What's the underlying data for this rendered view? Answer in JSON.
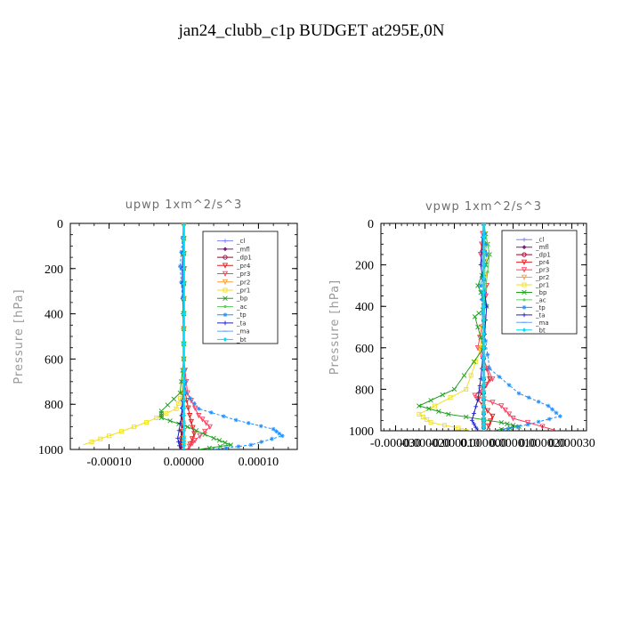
{
  "page": {
    "title": "jan24_clubb_c1p  BUDGET at295E,0N"
  },
  "legend": [
    {
      "name": "_cl",
      "color": "#8080ff",
      "marker": "plus"
    },
    {
      "name": "_mfl",
      "color": "#7a1a7a",
      "marker": "diamond"
    },
    {
      "name": "_dp1",
      "color": "#a00030",
      "marker": "circle"
    },
    {
      "name": "_pr4",
      "color": "#e02020",
      "marker": "tri"
    },
    {
      "name": "_pr3",
      "color": "#ff4060",
      "marker": "tri"
    },
    {
      "name": "_pr2",
      "color": "#ffa040",
      "marker": "tri"
    },
    {
      "name": "_pr1",
      "color": "#f0e020",
      "marker": "square"
    },
    {
      "name": "_bp",
      "color": "#20a020",
      "marker": "x"
    },
    {
      "name": "_ac",
      "color": "#60d060",
      "marker": "dot"
    },
    {
      "name": "_tp",
      "color": "#1e90ff",
      "marker": "star"
    },
    {
      "name": "_ta",
      "color": "#2020c0",
      "marker": "plus"
    },
    {
      "name": "_ma",
      "color": "#60a0ff",
      "marker": "dash"
    },
    {
      "name": "_bt",
      "color": "#00e0ff",
      "marker": "diamond"
    }
  ],
  "chart_data": [
    {
      "type": "line",
      "title": "upwp   1xm^2/s^3",
      "xlabel": "",
      "ylabel": "Pressure [hPa]",
      "xlim": [
        -0.000152,
        0.000152
      ],
      "ylim": [
        0,
        1000
      ],
      "y_inverted": true,
      "xticks": [
        -0.0001,
        0,
        0.0001
      ],
      "xtick_labels": [
        "-0.00010",
        "0.00000",
        "0.00010"
      ],
      "yticks": [
        0,
        200,
        400,
        600,
        800,
        1000
      ],
      "ytick_labels": [
        "0",
        "200",
        "400",
        "600",
        "800",
        "1000"
      ],
      "legend_position": "top-right",
      "series": [
        {
          "name": "_cl",
          "x": [
            3e-07,
            3e-07,
            3e-07,
            3e-07,
            3e-07,
            3e-07,
            3e-07,
            3e-07
          ],
          "y": [
            0,
            200,
            400,
            600,
            750,
            850,
            950,
            1000
          ]
        },
        {
          "name": "_mfl",
          "x": [
            0,
            0,
            0,
            0,
            0,
            0,
            0,
            0
          ],
          "y": [
            0,
            200,
            400,
            600,
            750,
            850,
            950,
            1000
          ]
        },
        {
          "name": "_dp1",
          "x": [
            0,
            0,
            0,
            0,
            0,
            -1.5e-06,
            -3e-06,
            -4e-06
          ],
          "y": [
            0,
            200,
            400,
            600,
            750,
            850,
            950,
            1000
          ]
        },
        {
          "name": "_pr4",
          "x": [
            0,
            0,
            0,
            0,
            2e-06,
            8e-06,
            1.4e-05,
            6e-06
          ],
          "y": [
            0,
            200,
            400,
            600,
            750,
            850,
            930,
            1000
          ]
        },
        {
          "name": "_pr3",
          "x": [
            0,
            0,
            0,
            0,
            5e-06,
            2e-05,
            3.5e-05,
            1.5e-05,
            4e-06
          ],
          "y": [
            0,
            200,
            400,
            600,
            750,
            850,
            900,
            960,
            1000
          ]
        },
        {
          "name": "_pr2",
          "x": [
            0,
            1e-06,
            0,
            0,
            0,
            -1e-06,
            0,
            0
          ],
          "y": [
            0,
            200,
            400,
            600,
            750,
            850,
            950,
            1000
          ]
        },
        {
          "name": "_pr1",
          "x": [
            0,
            -1e-06,
            0,
            0,
            -2e-06,
            -1e-05,
            -5e-05,
            -0.0001,
            -0.000135
          ],
          "y": [
            0,
            200,
            400,
            600,
            750,
            820,
            880,
            940,
            980
          ]
        },
        {
          "name": "_bp",
          "x": [
            0,
            0,
            0,
            0,
            -5e-06,
            -3e-05,
            -3e-05,
            5e-06,
            4e-05,
            6.3e-05,
            2e-05
          ],
          "y": [
            0,
            200,
            400,
            600,
            750,
            830,
            860,
            900,
            950,
            980,
            1000
          ]
        },
        {
          "name": "_ac",
          "x": [
            0,
            0,
            0,
            0,
            0,
            0,
            0,
            0
          ],
          "y": [
            0,
            200,
            400,
            600,
            750,
            850,
            950,
            1000
          ]
        },
        {
          "name": "_tp",
          "x": [
            0,
            -5e-06,
            0,
            0,
            3e-06,
            2e-05,
            7e-05,
            0.00012,
            0.000132,
            9e-05,
            4e-05
          ],
          "y": [
            0,
            190,
            400,
            600,
            750,
            820,
            870,
            910,
            940,
            980,
            1000
          ]
        },
        {
          "name": "_ta",
          "x": [
            0,
            -2e-06,
            -1e-06,
            0,
            -1e-06,
            -3e-06,
            -8e-06,
            -5e-06
          ],
          "y": [
            0,
            200,
            400,
            600,
            750,
            850,
            950,
            1000
          ]
        },
        {
          "name": "_ma",
          "x": [
            0,
            0,
            0,
            0,
            0,
            0,
            0,
            0
          ],
          "y": [
            0,
            200,
            400,
            600,
            750,
            850,
            950,
            1000
          ]
        },
        {
          "name": "_bt",
          "x": [
            0,
            0,
            0,
            0,
            0,
            0,
            0,
            0
          ],
          "y": [
            0,
            200,
            400,
            600,
            750,
            850,
            950,
            1000
          ]
        }
      ]
    },
    {
      "type": "line",
      "title": "vpwp   1xm^2/s^3",
      "xlabel": "",
      "ylabel": "Pressure [hPa]",
      "xlim": [
        -3.5e-05,
        3.5e-05
      ],
      "ylim": [
        0,
        1000
      ],
      "y_inverted": true,
      "xticks": [
        -3e-05,
        -2e-05,
        -1e-05,
        0,
        1e-05,
        2e-05,
        3e-05
      ],
      "xtick_labels": [
        "-0.000030",
        "-0.000020",
        "-0.000010",
        "0.000000",
        "0.000010",
        "0.000020",
        "0.000030"
      ],
      "yticks": [
        0,
        200,
        400,
        600,
        800,
        1000
      ],
      "ytick_labels": [
        "0",
        "200",
        "400",
        "600",
        "800",
        "1000"
      ],
      "legend_position": "top-right",
      "series": [
        {
          "name": "_cl",
          "x": [
            0,
            0,
            0,
            0,
            0,
            0,
            0,
            0
          ],
          "y": [
            0,
            200,
            400,
            600,
            750,
            850,
            950,
            1000
          ]
        },
        {
          "name": "_mfl",
          "x": [
            0,
            0,
            0,
            0,
            0,
            0,
            0,
            0
          ],
          "y": [
            0,
            200,
            400,
            600,
            750,
            850,
            950,
            1000
          ]
        },
        {
          "name": "_dp1",
          "x": [
            0,
            0,
            0,
            0,
            0,
            0,
            0,
            0
          ],
          "y": [
            0,
            200,
            400,
            600,
            750,
            850,
            950,
            1000
          ]
        },
        {
          "name": "_pr4",
          "x": [
            0,
            -1e-06,
            1e-06,
            0,
            -1e-06,
            2e-06,
            -2e-06,
            3e-06,
            1e-06
          ],
          "y": [
            0,
            150,
            300,
            450,
            600,
            750,
            850,
            930,
            1000
          ]
        },
        {
          "name": "_pr3",
          "x": [
            0,
            -1e-06,
            1e-06,
            0,
            -2e-06,
            3e-06,
            -3e-06,
            6e-06,
            1e-05,
            2.5e-05
          ],
          "y": [
            0,
            150,
            300,
            450,
            600,
            750,
            830,
            880,
            940,
            1000
          ]
        },
        {
          "name": "_pr2",
          "x": [
            0,
            0,
            0,
            0,
            0,
            0,
            0,
            0
          ],
          "y": [
            0,
            200,
            400,
            600,
            750,
            850,
            950,
            1000
          ]
        },
        {
          "name": "_pr1",
          "x": [
            0,
            1e-06,
            0,
            0,
            -1e-06,
            -6e-06,
            -2.2e-05,
            -1.8e-05,
            -4e-06
          ],
          "y": [
            0,
            150,
            300,
            450,
            600,
            800,
            920,
            960,
            1000
          ]
        },
        {
          "name": "_bp",
          "x": [
            0,
            2e-06,
            -2e-06,
            1e-06,
            -3e-06,
            0,
            -1e-05,
            -2.2e-05,
            -1.2e-05,
            6e-06,
            1.2e-05,
            3e-06
          ],
          "y": [
            0,
            150,
            300,
            400,
            450,
            600,
            800,
            880,
            920,
            960,
            980,
            1000
          ]
        },
        {
          "name": "_ac",
          "x": [
            0,
            2e-06,
            0,
            0,
            0,
            0,
            0,
            0
          ],
          "y": [
            0,
            150,
            400,
            600,
            750,
            850,
            950,
            1000
          ]
        },
        {
          "name": "_tp",
          "x": [
            0,
            1e-06,
            -1e-06,
            0,
            2e-06,
            1.2e-05,
            2.2e-05,
            2.6e-05,
            1.5e-05,
            5e-06
          ],
          "y": [
            0,
            150,
            300,
            500,
            700,
            820,
            880,
            930,
            970,
            1000
          ]
        },
        {
          "name": "_ta",
          "x": [
            0,
            -1e-06,
            1e-06,
            0,
            -1e-06,
            -2e-06,
            -4e-06,
            -2e-06
          ],
          "y": [
            0,
            200,
            400,
            600,
            750,
            850,
            950,
            1000
          ]
        },
        {
          "name": "_ma",
          "x": [
            0,
            0,
            0,
            0,
            0,
            0,
            0,
            0
          ],
          "y": [
            0,
            200,
            400,
            600,
            750,
            850,
            950,
            1000
          ]
        },
        {
          "name": "_bt",
          "x": [
            0,
            0,
            0,
            0,
            0,
            0,
            0,
            0
          ],
          "y": [
            0,
            200,
            400,
            600,
            750,
            850,
            950,
            1000
          ]
        }
      ]
    }
  ]
}
